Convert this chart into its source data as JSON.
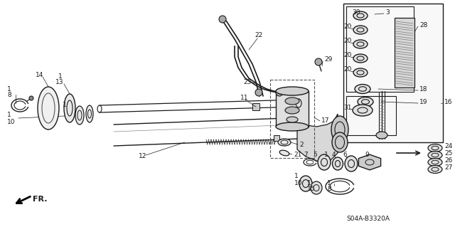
{
  "bg_color": "#ffffff",
  "line_color": "#1a1a1a",
  "diagram_code": "S04A-B3320A",
  "figsize": [
    6.4,
    3.19
  ],
  "dpi": 100
}
